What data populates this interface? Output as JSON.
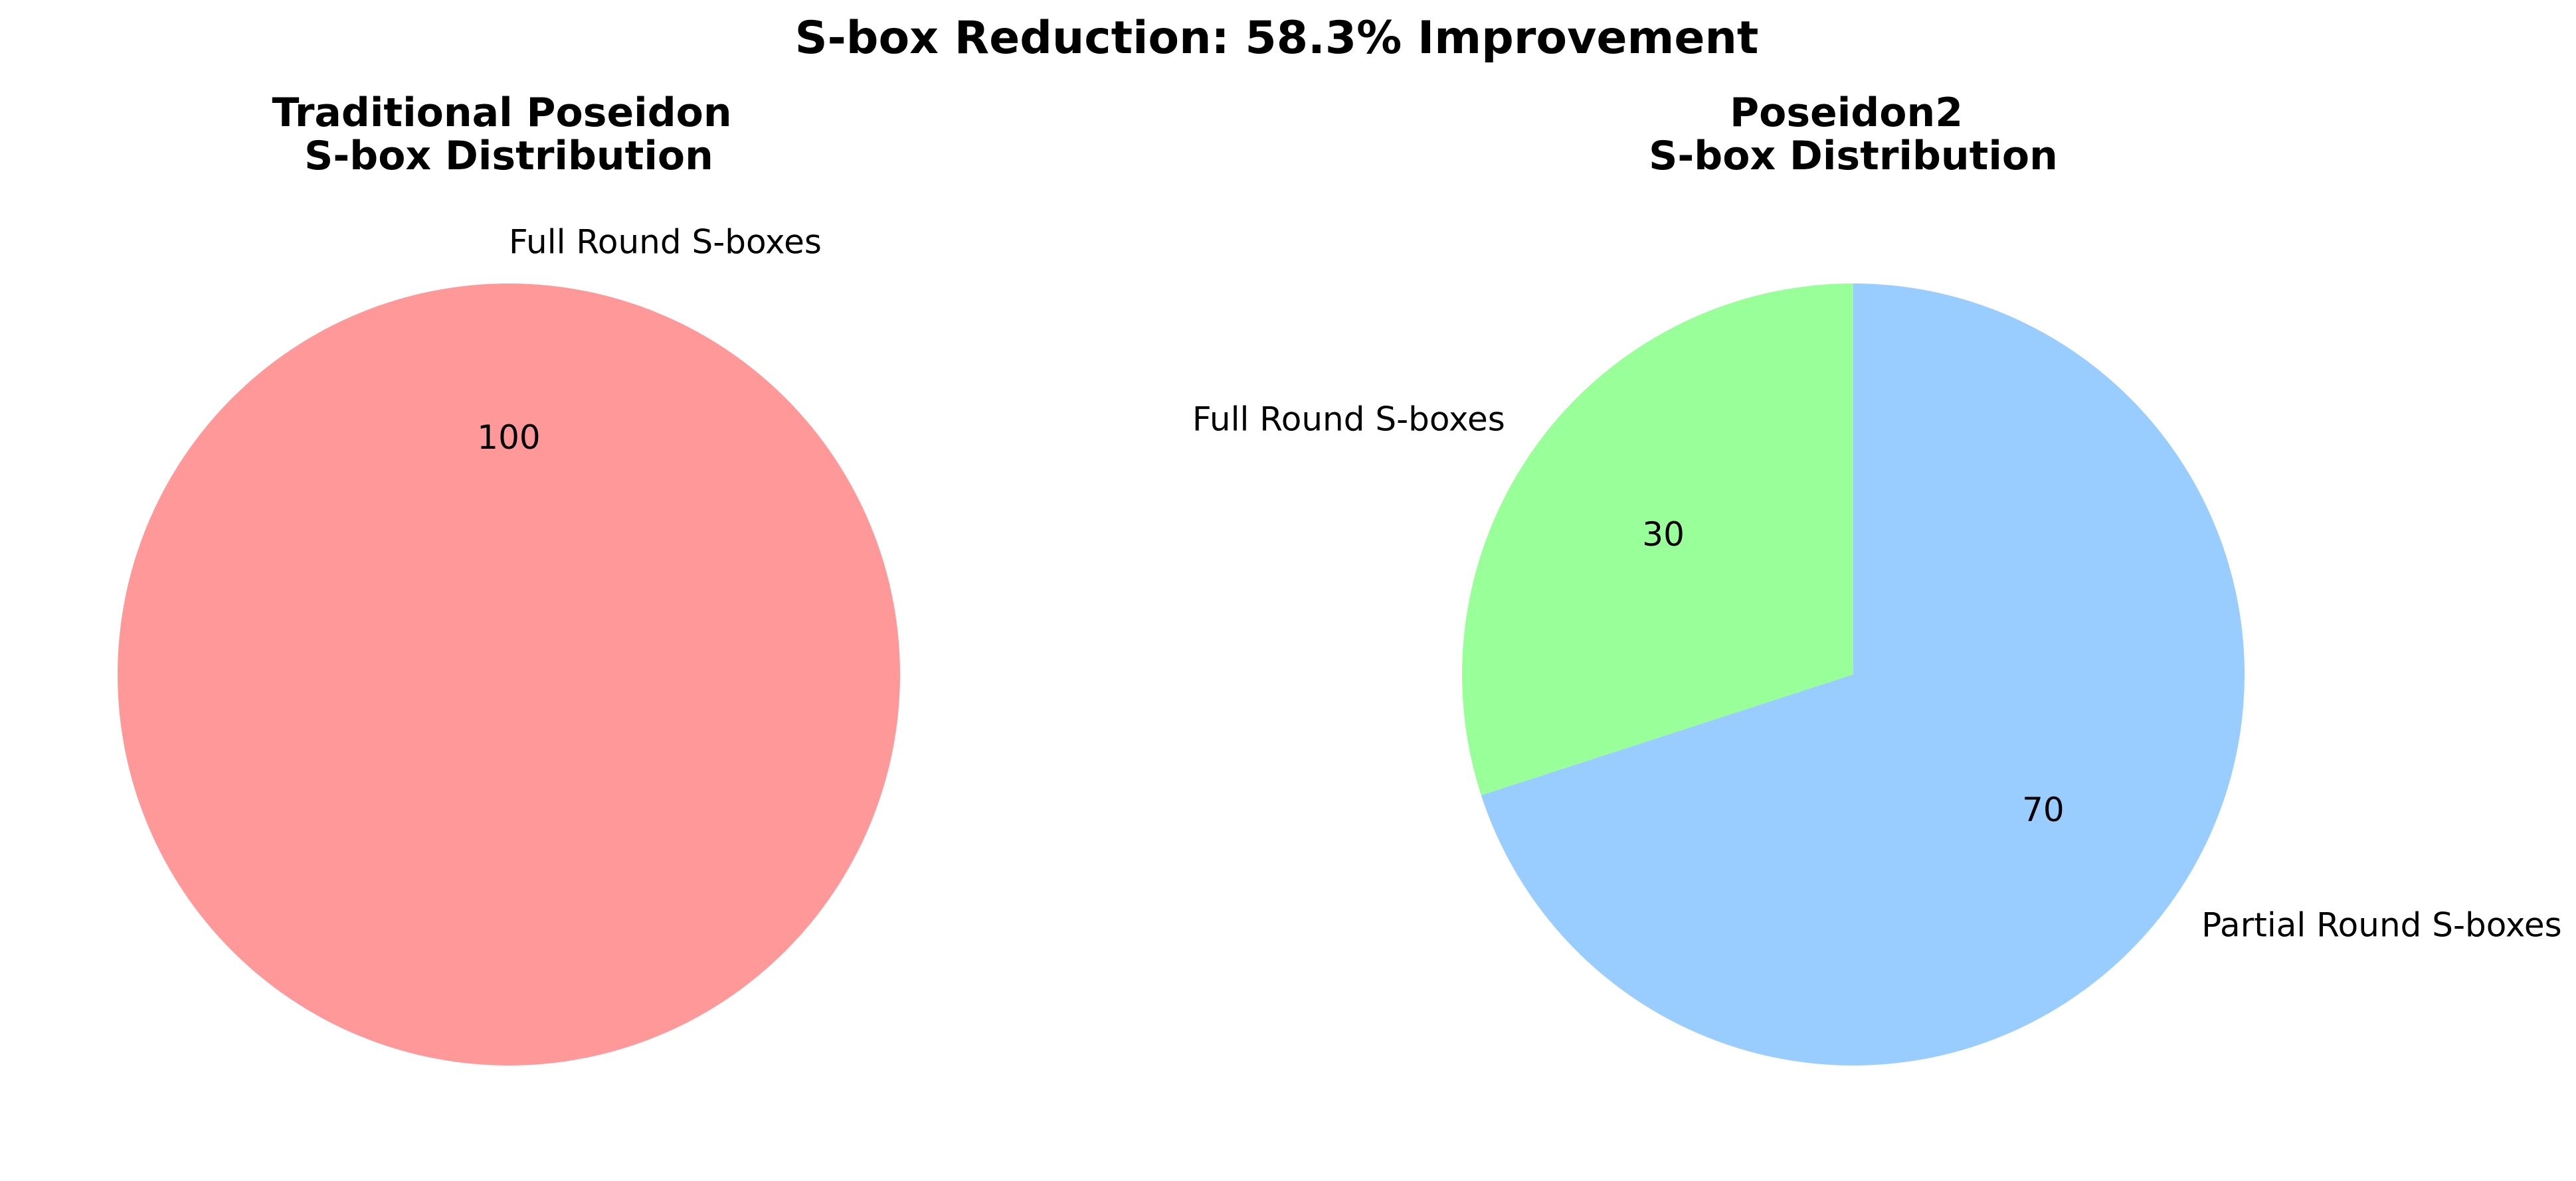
{
  "figure": {
    "title": "S-box Reduction: 58.3% Improvement"
  },
  "chart_data": [
    {
      "type": "pie",
      "title": "Traditional Poseidon\nS-box Distribution",
      "categories": [
        "Full Round S-boxes"
      ],
      "values": [
        100
      ],
      "labels": [
        "100"
      ],
      "colors": [
        "#ff9999"
      ],
      "start_angle_deg": -90,
      "direction": "counterclockwise"
    },
    {
      "type": "pie",
      "title": "Poseidon2\nS-box Distribution",
      "categories": [
        "Full Round S-boxes",
        "Partial Round S-boxes"
      ],
      "values": [
        30,
        70
      ],
      "labels": [
        "30",
        "70"
      ],
      "colors": [
        "#99ff99",
        "#99ccff"
      ],
      "start_angle_deg": 90,
      "direction": "counterclockwise"
    }
  ]
}
